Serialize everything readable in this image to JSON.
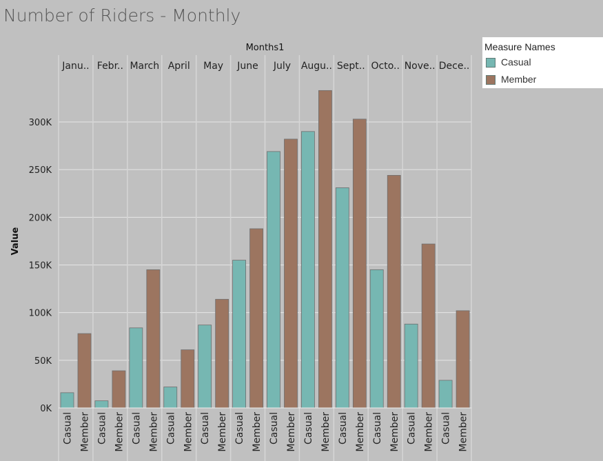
{
  "title": "Number of Riders - Monthly",
  "chart_data": {
    "type": "bar",
    "column_header": "Months1",
    "categories": [
      "Janu..",
      "Febr..",
      "March",
      "April",
      "May",
      "June",
      "July",
      "Augu..",
      "Sept..",
      "Octo..",
      "Nove..",
      "Dece.."
    ],
    "measure_labels": [
      "Casual",
      "Member"
    ],
    "series": [
      {
        "name": "Casual",
        "color": "#76b7b2",
        "values": [
          16000,
          7500,
          84000,
          22000,
          87000,
          155000,
          269000,
          290000,
          231000,
          145000,
          88000,
          29000
        ]
      },
      {
        "name": "Member",
        "color": "#9c7560",
        "values": [
          78000,
          39000,
          145000,
          61000,
          114000,
          188000,
          282000,
          333000,
          303000,
          244000,
          172000,
          102000
        ]
      }
    ],
    "ylabel": "Value",
    "ylim": [
      0,
      340000
    ],
    "yticks": [
      0,
      50000,
      100000,
      150000,
      200000,
      250000,
      300000
    ],
    "ytick_labels": [
      "0K",
      "50K",
      "100K",
      "150K",
      "200K",
      "250K",
      "300K"
    ],
    "grid": true,
    "legend": {
      "title": "Measure Names",
      "position": "top-right"
    }
  }
}
